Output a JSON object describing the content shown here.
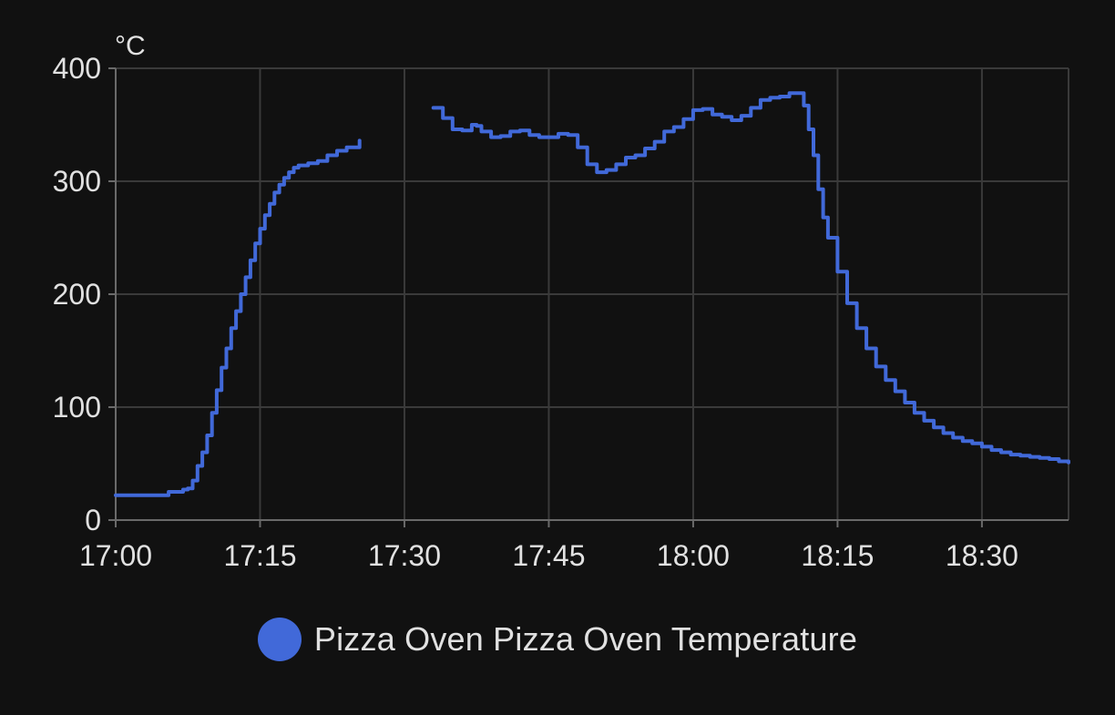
{
  "chart_data": {
    "type": "line",
    "title": "",
    "xlabel": "",
    "ylabel": "°C",
    "unit": "°C",
    "xlim": [
      "17:00",
      "18:39"
    ],
    "ylim": [
      0,
      400
    ],
    "x_ticks": [
      "17:00",
      "17:15",
      "17:30",
      "17:45",
      "18:00",
      "18:15",
      "18:30"
    ],
    "y_ticks": [
      0,
      100,
      200,
      300,
      400
    ],
    "grid": true,
    "legend_position": "bottom-center",
    "series": [
      {
        "name": "Pizza Oven Pizza Oven Temperature",
        "color": "#4169d9",
        "segments": [
          [
            [
              "17:00",
              22
            ],
            [
              "17:02",
              22
            ],
            [
              "17:04",
              22
            ],
            [
              "17:05",
              22
            ],
            [
              "17:05:30",
              25
            ],
            [
              "17:07",
              27
            ],
            [
              "17:07:30",
              28
            ],
            [
              "17:08",
              35
            ],
            [
              "17:08:30",
              48
            ],
            [
              "17:09",
              60
            ],
            [
              "17:09:30",
              75
            ],
            [
              "17:10",
              95
            ],
            [
              "17:10:30",
              115
            ],
            [
              "17:11",
              135
            ],
            [
              "17:11:30",
              152
            ],
            [
              "17:12",
              170
            ],
            [
              "17:12:30",
              185
            ],
            [
              "17:13",
              200
            ],
            [
              "17:13:30",
              215
            ],
            [
              "17:14",
              230
            ],
            [
              "17:14:30",
              245
            ],
            [
              "17:15",
              258
            ],
            [
              "17:15:30",
              270
            ],
            [
              "17:16",
              280
            ],
            [
              "17:16:30",
              290
            ],
            [
              "17:17",
              297
            ],
            [
              "17:17:30",
              303
            ],
            [
              "17:18",
              308
            ],
            [
              "17:18:30",
              312
            ],
            [
              "17:19",
              314
            ],
            [
              "17:20",
              316
            ],
            [
              "17:21",
              318
            ],
            [
              "17:22",
              323
            ],
            [
              "17:23",
              327
            ],
            [
              "17:24",
              330
            ],
            [
              "17:25",
              330
            ],
            [
              "17:25:20",
              336
            ]
          ],
          [
            [
              "17:33",
              365
            ],
            [
              "17:34",
              356
            ],
            [
              "17:35",
              346
            ],
            [
              "17:36",
              345
            ],
            [
              "17:37",
              350
            ],
            [
              "17:37:30",
              349
            ],
            [
              "17:38",
              344
            ],
            [
              "17:39",
              339
            ],
            [
              "17:40",
              340
            ],
            [
              "17:41",
              344
            ],
            [
              "17:42",
              345
            ],
            [
              "17:43",
              341
            ],
            [
              "17:44",
              339
            ],
            [
              "17:45",
              339
            ],
            [
              "17:46",
              342
            ],
            [
              "17:47",
              341
            ],
            [
              "17:48",
              330
            ],
            [
              "17:49",
              315
            ],
            [
              "17:50",
              308
            ],
            [
              "17:51",
              310
            ],
            [
              "17:52",
              315
            ],
            [
              "17:53",
              321
            ],
            [
              "17:54",
              323
            ],
            [
              "17:55",
              329
            ],
            [
              "17:56",
              335
            ],
            [
              "17:57",
              344
            ],
            [
              "17:58",
              348
            ],
            [
              "17:59",
              355
            ],
            [
              "18:00",
              363
            ],
            [
              "18:01",
              364
            ],
            [
              "18:02",
              359
            ],
            [
              "18:03",
              357
            ],
            [
              "18:04",
              354
            ],
            [
              "18:05",
              358
            ],
            [
              "18:06",
              365
            ],
            [
              "18:07",
              372
            ],
            [
              "18:08",
              374
            ],
            [
              "18:09",
              375
            ],
            [
              "18:10",
              378
            ],
            [
              "18:11",
              378
            ],
            [
              "18:11:30",
              367
            ],
            [
              "18:12",
              346
            ],
            [
              "18:12:30",
              323
            ],
            [
              "18:13",
              293
            ],
            [
              "18:13:30",
              268
            ],
            [
              "18:14",
              250
            ],
            [
              "18:15",
              220
            ],
            [
              "18:16",
              192
            ],
            [
              "18:17",
              170
            ],
            [
              "18:18",
              152
            ],
            [
              "18:19",
              136
            ],
            [
              "18:20",
              124
            ],
            [
              "18:21",
              114
            ],
            [
              "18:22",
              104
            ],
            [
              "18:23",
              95
            ],
            [
              "18:24",
              88
            ],
            [
              "18:25",
              82
            ],
            [
              "18:26",
              77
            ],
            [
              "18:27",
              73
            ],
            [
              "18:28",
              70
            ],
            [
              "18:29",
              68
            ],
            [
              "18:30",
              65
            ],
            [
              "18:31",
              62
            ],
            [
              "18:32",
              60
            ],
            [
              "18:33",
              58
            ],
            [
              "18:34",
              57
            ],
            [
              "18:35",
              56
            ],
            [
              "18:36",
              55
            ],
            [
              "18:37",
              54
            ],
            [
              "18:38",
              52
            ],
            [
              "18:39",
              51
            ]
          ]
        ]
      }
    ]
  },
  "legend": {
    "label": "Pizza Oven Pizza Oven Temperature",
    "color": "#4169d9"
  }
}
